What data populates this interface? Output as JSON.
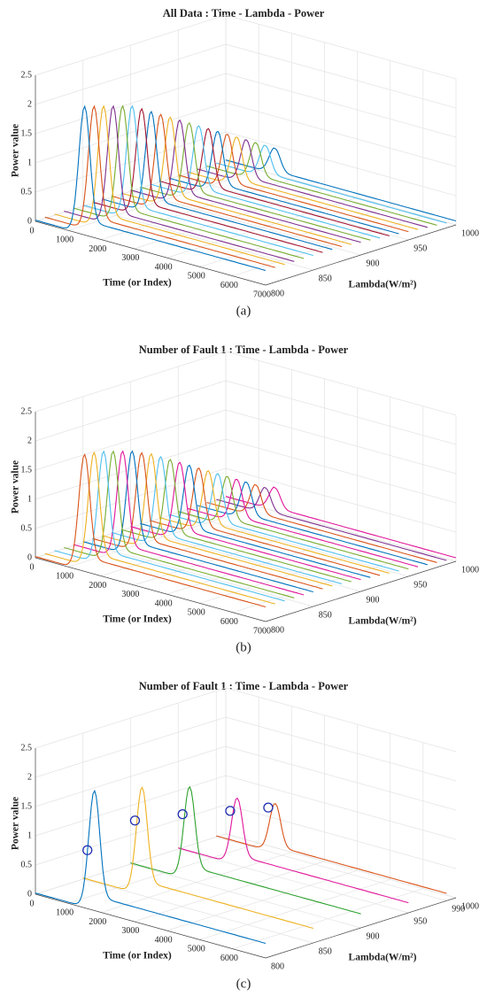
{
  "chart_data": [
    {
      "type": "line3d",
      "title": "All Data : Time - Lambda - Power",
      "caption": "(a)",
      "xlabel": "Time (or Index)",
      "ylabel": "Lambda(W/m²)",
      "zlabel": "Power value",
      "xlim": [
        0,
        7000
      ],
      "xticks": [
        0,
        1000,
        2000,
        3000,
        4000,
        5000,
        6000,
        7000
      ],
      "ylim": [
        800,
        1000
      ],
      "yticks": [
        800,
        850,
        900,
        950,
        1000
      ],
      "zlim": [
        0,
        2.5
      ],
      "zticks": [
        0,
        0.5,
        1,
        1.5,
        2,
        2.5
      ],
      "grid": true,
      "peak_time": 1500,
      "series": [
        {
          "color": "#0072bd",
          "lambda": 800,
          "peak": 2.2
        },
        {
          "color": "#d95319",
          "lambda": 810,
          "peak": 2.15
        },
        {
          "color": "#edb120",
          "lambda": 820,
          "peak": 2.1
        },
        {
          "color": "#7e2f8e",
          "lambda": 830,
          "peak": 2.05
        },
        {
          "color": "#77ac30",
          "lambda": 840,
          "peak": 2.0
        },
        {
          "color": "#4dbeee",
          "lambda": 850,
          "peak": 1.95
        },
        {
          "color": "#a2142f",
          "lambda": 860,
          "peak": 1.85
        },
        {
          "color": "#0072bd",
          "lambda": 870,
          "peak": 1.75
        },
        {
          "color": "#d95319",
          "lambda": 880,
          "peak": 1.65
        },
        {
          "color": "#edb120",
          "lambda": 890,
          "peak": 1.55
        },
        {
          "color": "#7e2f8e",
          "lambda": 900,
          "peak": 1.45
        },
        {
          "color": "#77ac30",
          "lambda": 910,
          "peak": 1.35
        },
        {
          "color": "#4dbeee",
          "lambda": 920,
          "peak": 1.25
        },
        {
          "color": "#a2142f",
          "lambda": 930,
          "peak": 1.15
        },
        {
          "color": "#0072bd",
          "lambda": 940,
          "peak": 1.05
        },
        {
          "color": "#d95319",
          "lambda": 950,
          "peak": 0.95
        },
        {
          "color": "#edb120",
          "lambda": 960,
          "peak": 0.85
        },
        {
          "color": "#7e2f8e",
          "lambda": 970,
          "peak": 0.75
        },
        {
          "color": "#77ac30",
          "lambda": 980,
          "peak": 0.65
        },
        {
          "color": "#4dbeee",
          "lambda": 990,
          "peak": 0.55
        },
        {
          "color": "#0072bd",
          "lambda": 1000,
          "peak": 0.45
        }
      ]
    },
    {
      "type": "line3d",
      "title": "Number of Fault 1 : Time - Lambda - Power",
      "caption": "(b)",
      "xlabel": "Time (or Index)",
      "ylabel": "Lambda(W/m²)",
      "zlabel": "Power value",
      "xlim": [
        0,
        7000
      ],
      "xticks": [
        0,
        1000,
        2000,
        3000,
        4000,
        5000,
        6000,
        7000
      ],
      "ylim": [
        800,
        1000
      ],
      "yticks": [
        800,
        850,
        900,
        950,
        1000
      ],
      "zlim": [
        0,
        2.5
      ],
      "zticks": [
        0,
        0.5,
        1,
        1.5,
        2,
        2.5
      ],
      "grid": true,
      "peak_time": 1500,
      "series": [
        {
          "color": "#d95319",
          "lambda": 800,
          "peak": 2.0
        },
        {
          "color": "#edb120",
          "lambda": 810,
          "peak": 1.98
        },
        {
          "color": "#4dbeee",
          "lambda": 820,
          "peak": 1.95
        },
        {
          "color": "#77ac30",
          "lambda": 830,
          "peak": 1.9
        },
        {
          "color": "#e0169a",
          "lambda": 840,
          "peak": 1.85
        },
        {
          "color": "#0072bd",
          "lambda": 850,
          "peak": 1.8
        },
        {
          "color": "#d95319",
          "lambda": 860,
          "peak": 1.72
        },
        {
          "color": "#edb120",
          "lambda": 870,
          "peak": 1.65
        },
        {
          "color": "#4dbeee",
          "lambda": 880,
          "peak": 1.55
        },
        {
          "color": "#77ac30",
          "lambda": 890,
          "peak": 1.45
        },
        {
          "color": "#e0169a",
          "lambda": 900,
          "peak": 1.35
        },
        {
          "color": "#0072bd",
          "lambda": 910,
          "peak": 1.25
        },
        {
          "color": "#d95319",
          "lambda": 920,
          "peak": 1.15
        },
        {
          "color": "#edb120",
          "lambda": 930,
          "peak": 1.05
        },
        {
          "color": "#4dbeee",
          "lambda": 940,
          "peak": 0.95
        },
        {
          "color": "#77ac30",
          "lambda": 950,
          "peak": 0.85
        },
        {
          "color": "#e0169a",
          "lambda": 960,
          "peak": 0.75
        },
        {
          "color": "#0072bd",
          "lambda": 970,
          "peak": 0.65
        },
        {
          "color": "#d95319",
          "lambda": 980,
          "peak": 0.55
        },
        {
          "color": "#7e2f8e",
          "lambda": 990,
          "peak": 0.45
        },
        {
          "color": "#e0169a",
          "lambda": 1000,
          "peak": 0.4
        }
      ]
    },
    {
      "type": "line3d",
      "title": "Number of Fault 1 : Time - Lambda - Power",
      "caption": "(c)",
      "xlabel": "Time (or Index)",
      "ylabel": "Lambda(W/m²)",
      "zlabel": "Power value",
      "xlim": [
        0,
        7000
      ],
      "xticks": [
        0,
        1000,
        2000,
        3000,
        4000,
        5000,
        6000
      ],
      "ylim": [
        800,
        1000
      ],
      "yticks": [
        800,
        850,
        900,
        950,
        990,
        1000
      ],
      "zlim": [
        0,
        2.5
      ],
      "zticks": [
        0,
        0.5,
        1,
        1.5,
        2,
        2.5
      ],
      "grid": true,
      "peak_time": 1800,
      "series": [
        {
          "color": "#0072bd",
          "lambda": 800,
          "peak": 2.05,
          "marker": 1.0
        },
        {
          "color": "#edb120",
          "lambda": 850,
          "peak": 1.85,
          "marker": 1.25
        },
        {
          "color": "#2ca02c",
          "lambda": 900,
          "peak": 1.6,
          "marker": 1.1
        },
        {
          "color": "#e0169a",
          "lambda": 950,
          "peak": 1.15,
          "marker": 0.9
        },
        {
          "color": "#d95319",
          "lambda": 990,
          "peak": 0.85,
          "marker": 0.75
        }
      ]
    }
  ]
}
